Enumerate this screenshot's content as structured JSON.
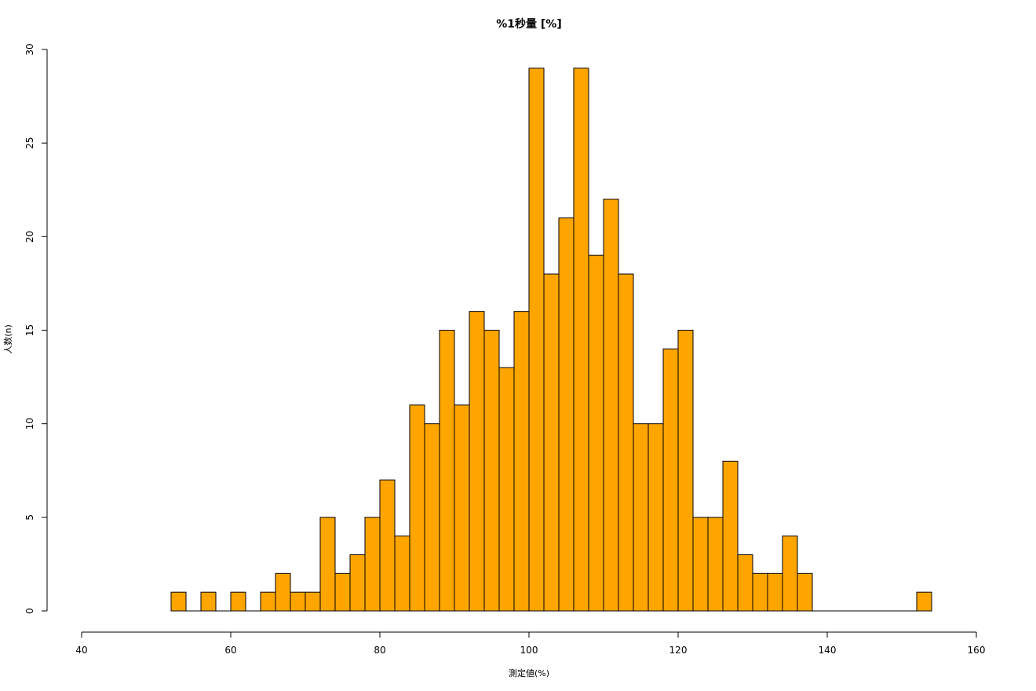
{
  "chart_data": {
    "type": "bar",
    "title": "%1秒量 [%]",
    "xlabel": "測定値(%)",
    "ylabel": "人数(n)",
    "xlim": [
      40,
      160
    ],
    "ylim": [
      0,
      30
    ],
    "x_ticks": [
      40,
      60,
      80,
      100,
      120,
      140,
      160
    ],
    "y_ticks": [
      0,
      5,
      10,
      15,
      20,
      25,
      30
    ],
    "bin_width": 2,
    "bins_start": 52,
    "values": [
      1,
      0,
      1,
      0,
      1,
      0,
      1,
      2,
      1,
      1,
      5,
      2,
      3,
      5,
      7,
      4,
      11,
      10,
      15,
      11,
      16,
      15,
      13,
      16,
      29,
      18,
      21,
      29,
      19,
      22,
      18,
      10,
      10,
      14,
      15,
      5,
      5,
      8,
      3,
      2,
      2,
      4,
      2,
      0,
      0,
      0,
      0,
      0,
      0,
      0,
      1
    ],
    "bar_color": "#FFA500",
    "edge_color": "#000000"
  }
}
